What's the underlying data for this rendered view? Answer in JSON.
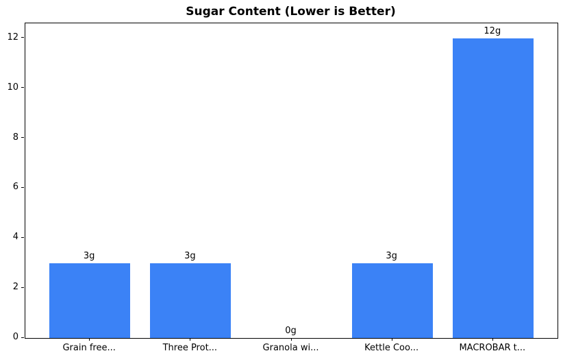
{
  "chart_data": {
    "type": "bar",
    "title": "Sugar Content (Lower is Better)",
    "categories": [
      "Grain free...",
      "Three Prot...",
      "Granola wi...",
      "Kettle Coo...",
      "MACROBAR t..."
    ],
    "values": [
      3,
      3,
      0,
      3,
      12
    ],
    "value_labels": [
      "3g",
      "3g",
      "0g",
      "3g",
      "12g"
    ],
    "yticks": [
      0,
      2,
      4,
      6,
      8,
      10,
      12
    ],
    "ylim": [
      0,
      12.6
    ],
    "xlabel": "",
    "ylabel": "",
    "grid": false,
    "legend_position": "none",
    "bar_color": "#3b82f6",
    "axis_color": "#000000",
    "text_color": "#000000"
  }
}
